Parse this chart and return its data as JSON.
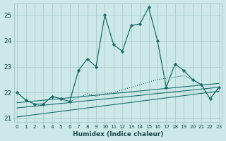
{
  "xlabel": "Humidex (Indice chaleur)",
  "bg_color": "#cce8e8",
  "grid_color": "#aacccc",
  "line_color": "#1a6e6a",
  "x": [
    0,
    1,
    2,
    3,
    4,
    5,
    6,
    7,
    8,
    9,
    10,
    11,
    12,
    13,
    14,
    15,
    16,
    17,
    18,
    19,
    20,
    21,
    22,
    23
  ],
  "line_main": [
    22.0,
    21.7,
    21.55,
    21.55,
    21.85,
    21.75,
    21.65,
    22.85,
    23.3,
    23.0,
    25.0,
    23.85,
    23.6,
    24.6,
    24.65,
    25.3,
    24.0,
    22.2,
    23.1,
    22.85,
    22.5,
    22.3,
    21.75,
    22.2
  ],
  "line_dot": [
    22.0,
    21.7,
    21.55,
    21.55,
    21.85,
    21.75,
    21.65,
    21.8,
    21.95,
    21.85,
    21.95,
    22.0,
    22.1,
    22.2,
    22.3,
    22.4,
    22.5,
    22.55,
    22.6,
    22.65,
    22.5,
    22.3,
    21.75,
    22.2
  ],
  "trend1_x": [
    0,
    23
  ],
  "trend1_y": [
    21.05,
    22.05
  ],
  "trend2_x": [
    0,
    23
  ],
  "trend2_y": [
    21.4,
    22.2
  ],
  "trend3_x": [
    0,
    23
  ],
  "trend3_y": [
    21.6,
    22.35
  ],
  "ylim": [
    20.85,
    25.45
  ],
  "xlim": [
    -0.3,
    23.3
  ],
  "yticks": [
    21,
    22,
    23,
    24,
    25
  ],
  "xticks": [
    0,
    1,
    2,
    3,
    4,
    5,
    6,
    7,
    8,
    9,
    10,
    11,
    12,
    13,
    14,
    15,
    16,
    17,
    18,
    19,
    20,
    21,
    22,
    23
  ]
}
